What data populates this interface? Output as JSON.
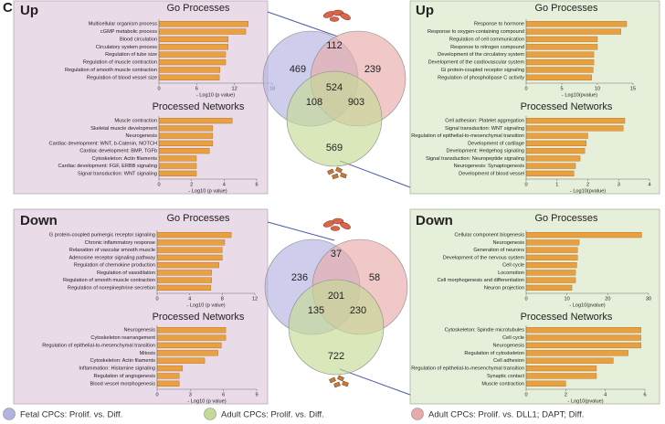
{
  "panel_label": "C",
  "legend": [
    {
      "label": "Fetal CPCs: Prolif. vs. Diff.",
      "color": "#b3b3e2"
    },
    {
      "label": "Adult CPCs: Prolif. vs. Diff.",
      "color": "#c4da96"
    },
    {
      "label": "Adult CPCs: Prolif. vs. DLL1; DAPT; Diff.",
      "color": "#e8aaaa"
    }
  ],
  "chart_data": [
    {
      "type": "barh",
      "heading": "Up",
      "title": "Go Processes",
      "xlabel": "- Log10 (p value)",
      "color": "#e8a040",
      "categories": [
        "Multicellular organism process",
        "cGMP metabolic process",
        "Blood circulation",
        "Circulatory system process",
        "Regulation of tube size",
        "Regulation of muscle contraction",
        "Regulation of smooth muscle contraction",
        "Regulation of blood vessel size"
      ],
      "values": [
        14.2,
        13.8,
        11,
        11,
        10.6,
        10.6,
        9.7,
        9.6
      ],
      "xlim": [
        0,
        18
      ],
      "xticks": [
        0,
        6,
        12,
        18
      ]
    },
    {
      "type": "barh",
      "title": "Processed Networks",
      "xlabel": "- Log10 (p value)",
      "color": "#e8a040",
      "categories": [
        "Muscle contraction",
        "Skeletal muscle development",
        "Neurogenesis",
        "Cardiac development: WNT, b-Catenin, NOTCH",
        "Cardiac development: BMP, TGFb",
        "Cytoskeleton: Actin filaments",
        "Cardiac development: FGF, ERBB signaling",
        "Signal transduction: WNT signaling"
      ],
      "values": [
        4.5,
        3.3,
        3.3,
        3.3,
        3.1,
        2.3,
        2.3,
        2.3
      ],
      "xlim": [
        0,
        6
      ],
      "xticks": [
        0,
        2,
        4,
        6
      ]
    },
    {
      "type": "barh",
      "heading": "Up",
      "title": "Go Processes",
      "xlabel": "- Log10(pvalue)",
      "color": "#e8a040",
      "categories": [
        "Response to hormone",
        "Response to oxygen-containing compound",
        "Regulation of cell communication",
        "Response to nitrogen compound",
        "Development of the circulatory system",
        "Development of the cardiovascular system",
        "Gi protein-coupled receptor signaling",
        "Regulation of phospholipase C activity"
      ],
      "values": [
        14.1,
        13.3,
        10,
        10,
        9.5,
        9.5,
        9.4,
        9.2
      ],
      "xlim": [
        0,
        15
      ],
      "xticks": [
        0,
        5,
        10,
        15
      ]
    },
    {
      "type": "barh",
      "title": "Processed Networks",
      "xlabel": "- Log10(pvalue)",
      "color": "#e8a040",
      "categories": [
        "Cell adhesion: Platelet aggregation",
        "Signal transduction: WNT signaling",
        "Regulation of epithelial-to-mesenchymal transition",
        "Development of cartilage",
        "Development: Hedgehog signaling",
        "Signal transduction: Neuropeptide signaling",
        "Neurogenesis: Synaptogenesis",
        "Development of blood vessel"
      ],
      "values": [
        3.2,
        3.15,
        2,
        1.95,
        1.9,
        1.75,
        1.6,
        1.55
      ],
      "xlim": [
        0,
        4
      ],
      "xticks": [
        0,
        1,
        2,
        3,
        4
      ]
    },
    {
      "type": "venn",
      "values": [
        469,
        112,
        239,
        524,
        108,
        903,
        569
      ]
    },
    {
      "type": "barh",
      "heading": "Down",
      "title": "Go Processes",
      "xlabel": "- Log10 (p value)",
      "color": "#e8a040",
      "categories": [
        "G protein-coupled purinergic receptor signaling",
        "Chronic inflammatory response",
        "Relaxation of vascular smooth muscle",
        "Adenosine receptor signaling pathway",
        "Regulation of chemokine production",
        "Regulation of vasodilation",
        "Regulation of smooth muscle contraction",
        "Regulation of norepinephrine secretion"
      ],
      "values": [
        9.1,
        8.3,
        8,
        8,
        7.6,
        6.7,
        6.7,
        6.6
      ],
      "xlim": [
        0,
        12
      ],
      "xticks": [
        0,
        4,
        8,
        12
      ]
    },
    {
      "type": "barh",
      "title": "Processed Networks",
      "xlabel": "- Log10 (p value)",
      "color": "#e8a040",
      "categories": [
        "Neurogenesis",
        "Cytoskeleton rearrangement",
        "Regulation of epithelial-to-mesenchymal transition",
        "Mitosis",
        "Cytoskeleton: Actin filaments",
        "Inflammation: Histamine signaling",
        "Regulation of angiogenesis",
        "Blood vessel morphogenesis"
      ],
      "values": [
        6.2,
        6.2,
        5.8,
        5.5,
        4.3,
        2.3,
        2,
        2
      ],
      "xlim": [
        0,
        9
      ],
      "xticks": [
        0,
        3,
        6,
        9
      ]
    },
    {
      "type": "barh",
      "heading": "Down",
      "title": "Go Processes",
      "xlabel": "- Log10(pvalue)",
      "color": "#e8a040",
      "categories": [
        "Cellular component biogenesis",
        "Neurogenesis",
        "Generation of neurons",
        "Development of the nervous system",
        "Cell cycle",
        "Locomotion",
        "Cell morphogenesis and differentiation",
        "Neuron projection"
      ],
      "values": [
        28.3,
        13,
        12.6,
        12.6,
        12.4,
        12.1,
        12.1,
        11.2
      ],
      "xlim": [
        0,
        30
      ],
      "xticks": [
        0,
        10,
        20,
        30
      ]
    },
    {
      "type": "barh",
      "title": "Processed Networks",
      "xlabel": "- Log10(pvalue)",
      "color": "#e8a040",
      "categories": [
        "Cytoskeleton: Spindle microtubules",
        "Cell cycle",
        "Neurogenesis",
        "Regulation of cytoskeleton",
        "Cell adhesion",
        "Regulation of epithelial-to-mesenchymal transition",
        "Synaptic contact",
        "Muscle contraction"
      ],
      "values": [
        5.8,
        5.8,
        5.8,
        5.15,
        4.4,
        3.55,
        3.55,
        2
      ],
      "xlim": [
        0,
        6
      ],
      "xticks": [
        0,
        2,
        4,
        6
      ]
    },
    {
      "type": "venn",
      "values": [
        236,
        37,
        58,
        201,
        135,
        230,
        722
      ]
    }
  ]
}
